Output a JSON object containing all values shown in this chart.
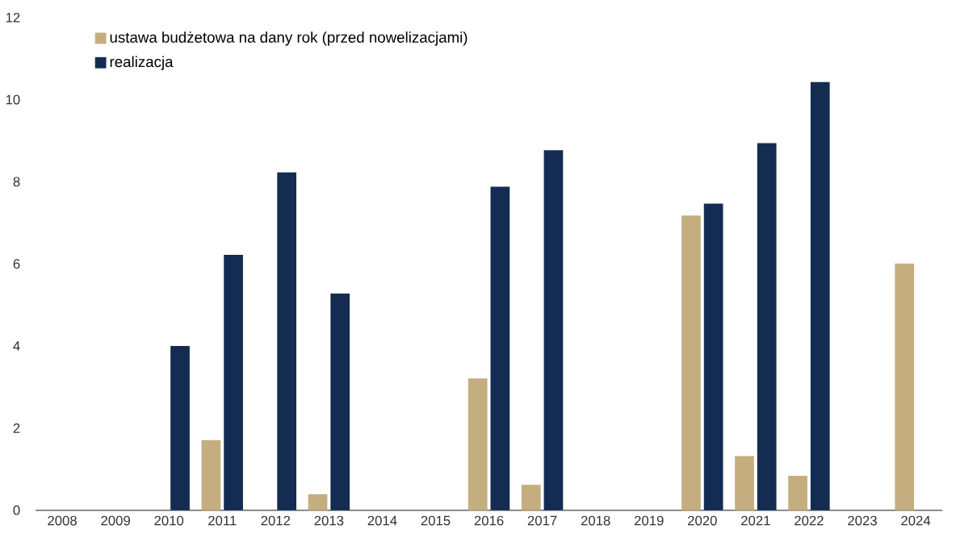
{
  "chart_data": {
    "type": "bar",
    "categories": [
      "2008",
      "2009",
      "2010",
      "2011",
      "2012",
      "2013",
      "2014",
      "2015",
      "2016",
      "2017",
      "2018",
      "2019",
      "2020",
      "2021",
      "2022",
      "2023",
      "2024"
    ],
    "series": [
      {
        "name": "ustawa budżetowa na dany rok (przed nowelizacjami)",
        "color": "#c4ae80",
        "values": [
          null,
          null,
          null,
          1.71,
          null,
          0.39,
          null,
          null,
          3.21,
          0.62,
          null,
          null,
          7.18,
          1.32,
          0.84,
          null,
          6.01
        ]
      },
      {
        "name": "realizacja",
        "color": "#152c52",
        "values": [
          null,
          null,
          4.0,
          6.22,
          8.23,
          5.28,
          null,
          null,
          7.88,
          8.77,
          null,
          null,
          7.47,
          8.94,
          10.43,
          null,
          null
        ]
      }
    ],
    "ylim": [
      0,
      12
    ],
    "yticks": [
      0,
      2,
      4,
      6,
      8,
      10,
      12
    ],
    "grid": false,
    "legend": "top left"
  }
}
